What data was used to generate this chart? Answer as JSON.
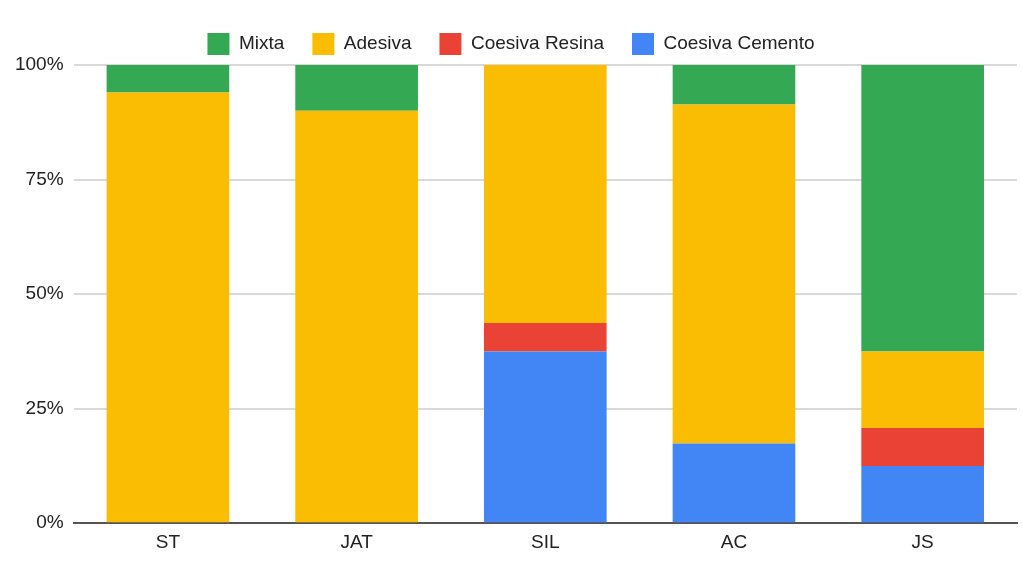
{
  "chart_data": {
    "type": "bar",
    "stacked": true,
    "categories": [
      "ST",
      "JAT",
      "SIL",
      "AC",
      "JS"
    ],
    "series": [
      {
        "name": "Coesiva Cemento",
        "color": "#4285f4",
        "values": [
          0,
          0,
          37.5,
          17.4,
          12.5
        ]
      },
      {
        "name": "Coesiva Resina",
        "color": "#ea4335",
        "values": [
          0,
          0,
          6.2,
          0,
          8.3
        ]
      },
      {
        "name": "Adesiva",
        "color": "#fbbc04",
        "values": [
          94,
          90,
          56.3,
          74,
          16.7
        ]
      },
      {
        "name": "Mixta",
        "color": "#34a853",
        "values": [
          6,
          10,
          0,
          8.6,
          62.5
        ]
      }
    ],
    "ylim": [
      0,
      100
    ],
    "yticks": [
      {
        "value": 0,
        "label": "0%"
      },
      {
        "value": 25,
        "label": "25%"
      },
      {
        "value": 50,
        "label": "50%"
      },
      {
        "value": 75,
        "label": "75%"
      },
      {
        "value": 100,
        "label": "100%"
      }
    ],
    "grid": "y",
    "legend": "top"
  }
}
